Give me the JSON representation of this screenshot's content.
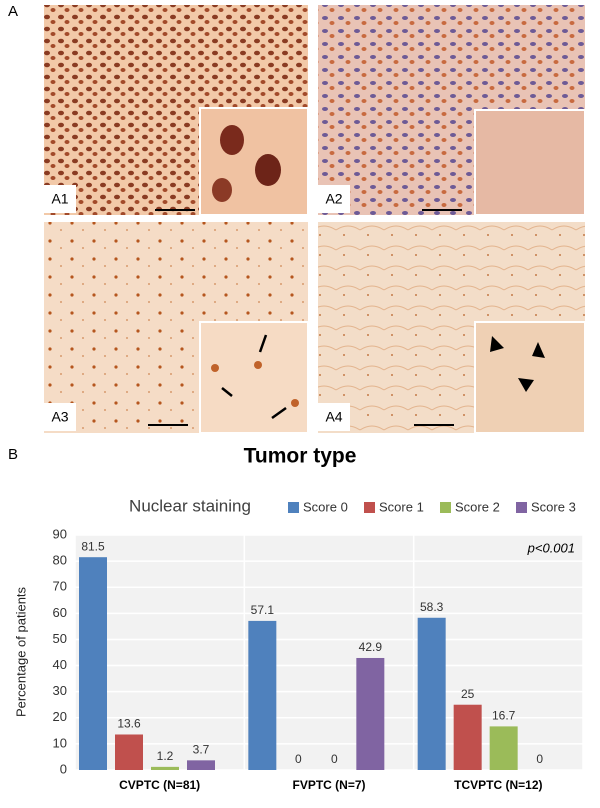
{
  "figure": {
    "panel_a_label": "A",
    "panel_b_label": "B",
    "image_labels": [
      "A1",
      "A2",
      "A3",
      "A4"
    ],
    "heading": "Tumor type"
  },
  "chart_data": {
    "type": "bar",
    "title": "Nuclear staining",
    "y_label": "Percentage of patients",
    "categories": [
      "CVPTC (N=81)",
      "FVPTC (N=7)",
      "TCVPTC (N=12)"
    ],
    "series": [
      {
        "name": "Score 0",
        "color": "#4f81bd",
        "values": [
          81.5,
          57.1,
          58.3
        ]
      },
      {
        "name": "Score 1",
        "color": "#c0504d",
        "values": [
          13.6,
          0,
          25
        ]
      },
      {
        "name": "Score 2",
        "color": "#9bbb59",
        "values": [
          1.2,
          0,
          16.7
        ]
      },
      {
        "name": "Score 3",
        "color": "#8064a2",
        "values": [
          3.7,
          42.9,
          0
        ]
      }
    ],
    "ylim": [
      0,
      90
    ],
    "yticks": [
      0,
      10,
      20,
      30,
      40,
      50,
      60,
      70,
      80,
      90
    ],
    "annotation": "p<0.001",
    "grid": true,
    "legend": "top-right"
  }
}
